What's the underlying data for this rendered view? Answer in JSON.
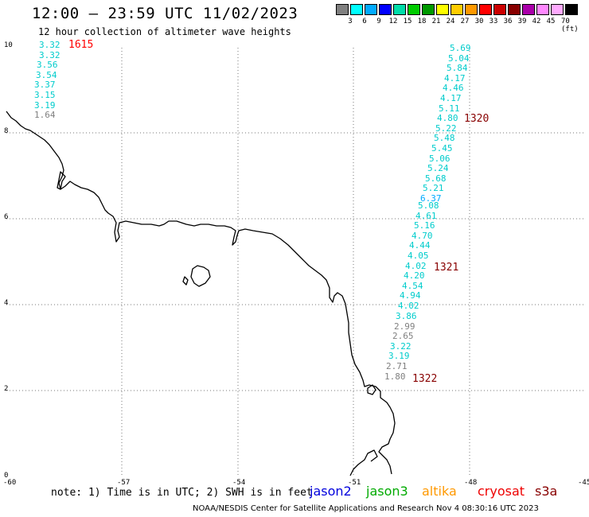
{
  "header": {
    "title": "12:00 — 23:59 UTC 11/02/2023",
    "subtitle": "12 hour collection of altimeter wave heights"
  },
  "legend": {
    "labels": [
      "3",
      "6",
      "9",
      "12",
      "15",
      "18",
      "21",
      "24",
      "27",
      "30",
      "33",
      "36",
      "39",
      "42",
      "45",
      "70 (ft)"
    ],
    "colors": [
      "#808080",
      "#00ffff",
      "#00aaff",
      "#0000ff",
      "#00ddaa",
      "#00cc00",
      "#009900",
      "#ffff00",
      "#ffcc00",
      "#ff9900",
      "#ff0000",
      "#cc0000",
      "#880000",
      "#aa00aa",
      "#ff88ff",
      "#ffaaff",
      "#000000"
    ]
  },
  "axes": {
    "y_ticks": [
      "10",
      "8",
      "6",
      "4",
      "2",
      "0"
    ],
    "x_ticks": [
      "-60",
      "-57",
      "-54",
      "-51",
      "-48",
      "-45"
    ]
  },
  "tracks": [
    {
      "time": "1615",
      "time_color": "#ff0000",
      "values": [
        {
          "v": "3.32",
          "c": "#00cccc"
        },
        {
          "v": "3.32",
          "c": "#00cccc"
        },
        {
          "v": "3.56",
          "c": "#00cccc"
        },
        {
          "v": "3.54",
          "c": "#00cccc"
        },
        {
          "v": "3.37",
          "c": "#00cccc"
        },
        {
          "v": "3.15",
          "c": "#00cccc"
        },
        {
          "v": "3.19",
          "c": "#00cccc"
        },
        {
          "v": "1.64",
          "c": "#808080"
        }
      ]
    },
    {
      "time": "1320",
      "time_color": "#880000",
      "values": [
        {
          "v": "5.69",
          "c": "#00cccc"
        },
        {
          "v": "5.04",
          "c": "#00cccc"
        },
        {
          "v": "5.84",
          "c": "#00cccc"
        },
        {
          "v": "4.17",
          "c": "#00cccc"
        },
        {
          "v": "4.46",
          "c": "#00cccc"
        },
        {
          "v": "4.17",
          "c": "#00cccc"
        },
        {
          "v": "5.11",
          "c": "#00cccc"
        },
        {
          "v": "4.80",
          "c": "#00cccc"
        },
        {
          "v": "5.22",
          "c": "#00cccc"
        },
        {
          "v": "5.48",
          "c": "#00cccc"
        },
        {
          "v": "5.45",
          "c": "#00cccc"
        },
        {
          "v": "5.06",
          "c": "#00cccc"
        },
        {
          "v": "5.24",
          "c": "#00cccc"
        },
        {
          "v": "5.68",
          "c": "#00cccc"
        },
        {
          "v": "5.21",
          "c": "#00cccc"
        },
        {
          "v": "6.37",
          "c": "#00aaff"
        }
      ]
    },
    {
      "time": "1321",
      "time_color": "#880000",
      "values": [
        {
          "v": "5.08",
          "c": "#00cccc"
        },
        {
          "v": "4.61",
          "c": "#00cccc"
        },
        {
          "v": "5.16",
          "c": "#00cccc"
        },
        {
          "v": "4.70",
          "c": "#00cccc"
        },
        {
          "v": "4.44",
          "c": "#00cccc"
        },
        {
          "v": "4.05",
          "c": "#00cccc"
        },
        {
          "v": "4.02",
          "c": "#00cccc"
        },
        {
          "v": "4.20",
          "c": "#00cccc"
        },
        {
          "v": "4.54",
          "c": "#00cccc"
        },
        {
          "v": "4.94",
          "c": "#00cccc"
        },
        {
          "v": "4.02",
          "c": "#00cccc"
        }
      ]
    },
    {
      "time": "1322",
      "time_color": "#880000",
      "values": [
        {
          "v": "3.86",
          "c": "#00cccc"
        },
        {
          "v": "2.99",
          "c": "#808080"
        },
        {
          "v": "2.65",
          "c": "#808080"
        },
        {
          "v": "3.22",
          "c": "#00cccc"
        },
        {
          "v": "3.19",
          "c": "#00cccc"
        },
        {
          "v": "2.71",
          "c": "#808080"
        },
        {
          "v": "1.80",
          "c": "#808080"
        }
      ]
    }
  ],
  "note": "note: 1) Time is in UTC; 2) SWH is in feet",
  "satellites": [
    {
      "name": "jason2",
      "color": "#0000dd"
    },
    {
      "name": "jason3",
      "color": "#00aa00"
    },
    {
      "name": "altika",
      "color": "#ff9900"
    },
    {
      "name": "cryosat",
      "color": "#ee0000"
    },
    {
      "name": "s3a",
      "color": "#880000"
    }
  ],
  "footer": "NOAA/NESDIS Center for Satellite Applications and Research   Nov  4 08:30:16 UTC 2023"
}
